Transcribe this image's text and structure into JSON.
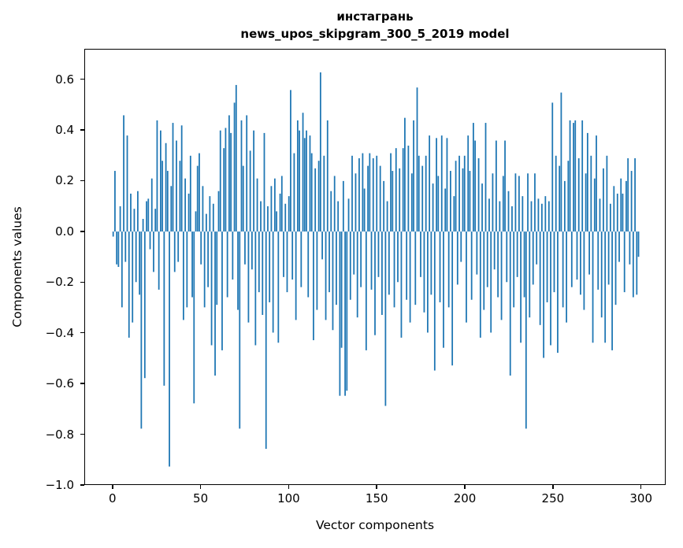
{
  "chart_data": {
    "type": "bar",
    "title": "инстагрань",
    "subtitle": "news_upos_skipgram_300_5_2019 model",
    "xlabel": "Vector components",
    "ylabel": "Components values",
    "bar_color": "#1f77b4",
    "spine_color": "#000000",
    "background_color": "#ffffff",
    "xlim": [
      -16,
      314
    ],
    "ylim": [
      -1.0,
      0.72
    ],
    "xticks": [
      0,
      50,
      100,
      150,
      200,
      250,
      300
    ],
    "yticks": [
      0.6,
      0.4,
      0.2,
      0.0,
      -0.2,
      -0.4,
      -0.6,
      -0.8,
      -1.0
    ],
    "grid": false,
    "legend": "none",
    "x_start": 0,
    "values": [
      -0.02,
      0.24,
      -0.13,
      -0.14,
      0.1,
      -0.3,
      0.46,
      -0.12,
      0.38,
      -0.42,
      0.15,
      -0.36,
      0.09,
      -0.2,
      0.16,
      -0.25,
      -0.78,
      0.05,
      -0.58,
      0.12,
      0.13,
      -0.07,
      0.21,
      -0.16,
      0.09,
      0.44,
      -0.23,
      0.4,
      0.28,
      -0.61,
      0.35,
      0.24,
      -0.93,
      0.18,
      0.43,
      -0.16,
      0.36,
      -0.12,
      0.28,
      0.42,
      -0.35,
      0.21,
      -0.3,
      0.15,
      0.3,
      -0.26,
      -0.68,
      0.08,
      0.26,
      0.31,
      -0.13,
      0.18,
      -0.3,
      0.07,
      -0.22,
      0.14,
      -0.45,
      0.11,
      -0.57,
      -0.29,
      0.16,
      0.4,
      -0.47,
      0.33,
      0.41,
      -0.26,
      0.46,
      0.39,
      -0.19,
      0.51,
      0.58,
      -0.31,
      -0.78,
      0.44,
      0.26,
      -0.13,
      0.46,
      -0.36,
      0.32,
      -0.15,
      0.4,
      -0.45,
      0.21,
      -0.24,
      0.12,
      -0.33,
      0.39,
      -0.86,
      0.1,
      -0.28,
      0.18,
      -0.4,
      0.21,
      0.08,
      -0.44,
      0.15,
      0.22,
      -0.18,
      0.11,
      -0.24,
      0.14,
      0.56,
      -0.19,
      0.31,
      -0.35,
      0.44,
      0.4,
      -0.22,
      0.47,
      0.37,
      0.4,
      -0.26,
      0.38,
      0.31,
      -0.43,
      0.25,
      -0.31,
      0.28,
      0.63,
      -0.11,
      0.3,
      -0.35,
      0.44,
      -0.24,
      0.16,
      -0.39,
      0.22,
      -0.29,
      0.12,
      -0.65,
      -0.46,
      0.2,
      -0.65,
      -0.63,
      0.13,
      -0.27,
      0.3,
      -0.17,
      0.23,
      -0.34,
      0.29,
      -0.22,
      0.31,
      0.17,
      -0.47,
      0.26,
      0.31,
      -0.23,
      0.29,
      -0.41,
      0.3,
      -0.18,
      0.26,
      -0.33,
      0.2,
      -0.69,
      0.12,
      -0.25,
      0.31,
      0.24,
      -0.3,
      0.33,
      -0.2,
      0.25,
      -0.42,
      0.33,
      0.45,
      -0.27,
      0.34,
      -0.36,
      0.23,
      0.44,
      -0.29,
      0.57,
      0.3,
      -0.18,
      0.26,
      -0.32,
      0.3,
      -0.4,
      0.38,
      -0.25,
      0.19,
      -0.55,
      0.37,
      0.22,
      -0.28,
      0.38,
      -0.46,
      0.17,
      0.37,
      -0.3,
      0.24,
      -0.53,
      0.14,
      0.28,
      -0.21,
      0.3,
      -0.12,
      0.25,
      0.3,
      -0.36,
      0.38,
      0.24,
      -0.27,
      0.43,
      0.36,
      -0.17,
      0.29,
      -0.42,
      0.19,
      -0.31,
      0.43,
      -0.22,
      0.13,
      -0.4,
      0.23,
      -0.15,
      0.36,
      -0.26,
      0.12,
      -0.35,
      0.22,
      0.36,
      -0.2,
      0.16,
      -0.57,
      0.1,
      -0.3,
      0.23,
      -0.18,
      0.22,
      -0.44,
      0.14,
      -0.26,
      -0.78,
      0.23,
      -0.34,
      0.12,
      -0.21,
      0.23,
      -0.13,
      0.13,
      -0.37,
      0.11,
      -0.5,
      0.14,
      -0.28,
      0.12,
      -0.45,
      0.51,
      -0.24,
      0.3,
      -0.48,
      0.26,
      0.55,
      -0.3,
      0.2,
      -0.36,
      0.28,
      0.44,
      -0.22,
      0.43,
      0.44,
      -0.19,
      0.29,
      -0.25,
      0.44,
      -0.31,
      0.23,
      0.39,
      -0.17,
      0.3,
      -0.44,
      0.21,
      0.38,
      -0.23,
      0.13,
      -0.34,
      0.25,
      -0.44,
      0.3,
      -0.21,
      0.11,
      -0.47,
      0.18,
      -0.29,
      0.15,
      -0.12,
      0.21,
      0.15,
      -0.24,
      0.2,
      0.29,
      -0.13,
      0.24,
      -0.26,
      0.29,
      -0.25,
      -0.1
    ]
  }
}
